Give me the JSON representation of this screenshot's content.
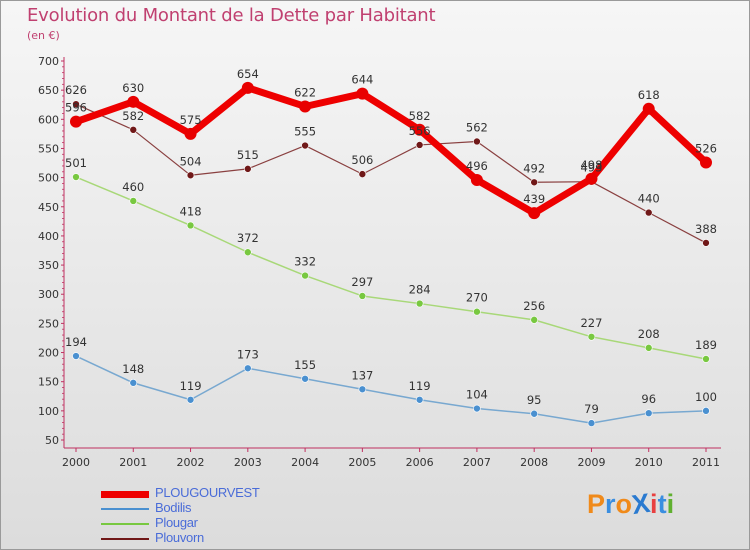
{
  "title": "Evolution du Montant de la Dette par Habitant",
  "subtitle": "(en €)",
  "logo": {
    "text": "ProXiti",
    "colors": [
      "#f08a1a",
      "#3a8ee0",
      "#f08a1a",
      "#2a7ad0",
      "#e84040",
      "#3a8ee0",
      "#60b030"
    ]
  },
  "chart_data": {
    "type": "line",
    "x": [
      "2000",
      "2001",
      "2002",
      "2003",
      "2004",
      "2005",
      "2006",
      "2007",
      "2008",
      "2009",
      "2010",
      "2011"
    ],
    "ylim": [
      50,
      700
    ],
    "yticks": [
      50,
      100,
      150,
      200,
      250,
      300,
      350,
      400,
      450,
      500,
      550,
      600,
      650,
      700
    ],
    "grid": false,
    "legend_position": "bottom-left",
    "series": [
      {
        "name": "PLOUGOURVEST",
        "color": "#ee0000",
        "point_color": "#e80000",
        "width": 7,
        "radius": 6,
        "label_values": true,
        "values": [
          596,
          630,
          575,
          654,
          622,
          644,
          582,
          496,
          439,
          498,
          618,
          526
        ]
      },
      {
        "name": "Bodilis",
        "color": "#78a8d0",
        "point_color": "#4a90d0",
        "width": 1.5,
        "radius": 3.5,
        "label_values": true,
        "values": [
          194,
          148,
          119,
          173,
          155,
          137,
          119,
          104,
          95,
          79,
          96,
          100
        ]
      },
      {
        "name": "Plougar",
        "color": "#a8d878",
        "point_color": "#78c840",
        "width": 1.5,
        "radius": 3.5,
        "label_values": true,
        "values": [
          501,
          460,
          418,
          372,
          332,
          297,
          284,
          270,
          256,
          227,
          208,
          189
        ]
      },
      {
        "name": "Plouvorn",
        "color": "#8a4040",
        "point_color": "#701818",
        "width": 1.2,
        "radius": 3.5,
        "label_values": true,
        "values": [
          626,
          582,
          504,
          515,
          555,
          506,
          556,
          562,
          492,
          493,
          440,
          388
        ]
      }
    ]
  }
}
